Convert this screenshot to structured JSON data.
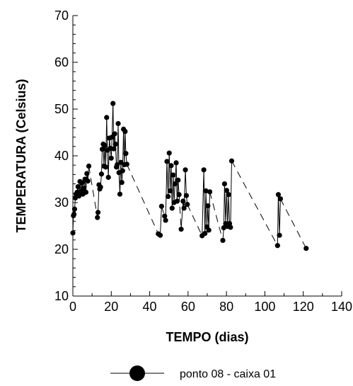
{
  "chart_data": {
    "type": "scatter",
    "xlabel": "TEMPO (dias)",
    "ylabel": "TEMPERATURA (Celsius)",
    "xlim": [
      0,
      140
    ],
    "ylim": [
      10,
      70
    ],
    "xticks": [
      0,
      20,
      40,
      60,
      80,
      100,
      120,
      140
    ],
    "yticks": [
      10,
      20,
      30,
      40,
      50,
      60,
      70
    ],
    "xtick_labels": [
      "0",
      "20",
      "40",
      "60",
      "80",
      "100",
      "120",
      "140"
    ],
    "ytick_labels": [
      "10",
      "20",
      "30",
      "40",
      "50",
      "60",
      "70"
    ],
    "grid": false,
    "legend_position": "bottom-center",
    "series": [
      {
        "name": "ponto 08 - caixa 01",
        "color": "#000000",
        "line_style": "dashed",
        "marker": "filled-circle",
        "points": [
          [
            0.0,
            23.5
          ],
          [
            0.3,
            27.2
          ],
          [
            0.6,
            27.5
          ],
          [
            0.9,
            28.6
          ],
          [
            1.3,
            31.0
          ],
          [
            1.7,
            31.8
          ],
          [
            2.2,
            32.2
          ],
          [
            2.7,
            33.4
          ],
          [
            3.2,
            31.4
          ],
          [
            3.7,
            34.5
          ],
          [
            4.2,
            32.4
          ],
          [
            4.7,
            34.2
          ],
          [
            5.2,
            31.8
          ],
          [
            5.7,
            33.1
          ],
          [
            6.3,
            35.0
          ],
          [
            6.8,
            32.2
          ],
          [
            7.3,
            36.2
          ],
          [
            7.8,
            34.6
          ],
          [
            8.3,
            37.8
          ],
          [
            12.8,
            26.8
          ],
          [
            13.1,
            27.9
          ],
          [
            13.6,
            33.8
          ],
          [
            14.0,
            32.9
          ],
          [
            14.4,
            33.3
          ],
          [
            14.9,
            36.1
          ],
          [
            15.3,
            41.4
          ],
          [
            15.8,
            42.5
          ],
          [
            16.2,
            37.8
          ],
          [
            16.7,
            42.2
          ],
          [
            17.1,
            37.6
          ],
          [
            17.6,
            48.2
          ],
          [
            18.0,
            41.2
          ],
          [
            18.5,
            35.4
          ],
          [
            19.0,
            43.8
          ],
          [
            19.5,
            41.6
          ],
          [
            20.0,
            39.5
          ],
          [
            20.4,
            44.0
          ],
          [
            20.9,
            51.2
          ],
          [
            21.3,
            41.5
          ],
          [
            21.8,
            44.7
          ],
          [
            22.2,
            42.5
          ],
          [
            22.7,
            37.6
          ],
          [
            23.1,
            38.1
          ],
          [
            23.6,
            46.9
          ],
          [
            24.0,
            36.4
          ],
          [
            24.5,
            31.8
          ],
          [
            25.0,
            38.6
          ],
          [
            25.5,
            34.3
          ],
          [
            25.9,
            36.8
          ],
          [
            26.4,
            45.7
          ],
          [
            26.8,
            38.1
          ],
          [
            27.2,
            45.2
          ],
          [
            27.6,
            40.5
          ],
          [
            28.1,
            38.2
          ],
          [
            44.5,
            23.3
          ],
          [
            45.5,
            23.0
          ],
          [
            46.2,
            29.2
          ],
          [
            47.8,
            27.1
          ],
          [
            48.3,
            26.2
          ],
          [
            49.0,
            38.8
          ],
          [
            49.6,
            31.3
          ],
          [
            50.2,
            40.6
          ],
          [
            50.7,
            32.5
          ],
          [
            51.2,
            37.9
          ],
          [
            51.7,
            28.8
          ],
          [
            52.2,
            35.9
          ],
          [
            52.7,
            30.0
          ],
          [
            53.2,
            34.0
          ],
          [
            53.8,
            38.5
          ],
          [
            54.3,
            30.3
          ],
          [
            54.8,
            34.8
          ],
          [
            55.3,
            31.7
          ],
          [
            56.4,
            24.3
          ],
          [
            57.4,
            30.3
          ],
          [
            57.9,
            28.8
          ],
          [
            58.6,
            37.0
          ],
          [
            59.1,
            31.5
          ],
          [
            59.6,
            29.6
          ],
          [
            67.3,
            22.9
          ],
          [
            68.2,
            37.0
          ],
          [
            68.8,
            23.4
          ],
          [
            69.3,
            32.5
          ],
          [
            69.8,
            24.8
          ],
          [
            70.3,
            29.3
          ],
          [
            70.8,
            24.1
          ],
          [
            71.3,
            32.3
          ],
          [
            78.1,
            21.9
          ],
          [
            78.6,
            24.6
          ],
          [
            79.0,
            34.0
          ],
          [
            79.6,
            25.5
          ],
          [
            80.1,
            32.6
          ],
          [
            80.6,
            24.9
          ],
          [
            81.1,
            31.7
          ],
          [
            81.6,
            25.5
          ],
          [
            82.1,
            24.7
          ],
          [
            82.7,
            38.9
          ],
          [
            106.6,
            20.8
          ],
          [
            107.0,
            31.7
          ],
          [
            107.6,
            23.0
          ],
          [
            108.1,
            30.8
          ],
          [
            121.5,
            20.2
          ]
        ]
      }
    ],
    "connector_segments": [
      [
        [
          8.3,
          37.8
        ],
        [
          12.8,
          26.8
        ]
      ],
      [
        [
          28.1,
          38.2
        ],
        [
          44.5,
          23.3
        ]
      ],
      [
        [
          46.2,
          29.2
        ],
        [
          47.8,
          27.1
        ]
      ],
      [
        [
          55.3,
          31.7
        ],
        [
          56.4,
          24.3
        ]
      ],
      [
        [
          59.6,
          29.6
        ],
        [
          67.3,
          22.9
        ]
      ],
      [
        [
          71.3,
          32.3
        ],
        [
          78.1,
          21.9
        ]
      ],
      [
        [
          82.7,
          38.9
        ],
        [
          106.6,
          20.8
        ]
      ],
      [
        [
          108.1,
          30.8
        ],
        [
          121.5,
          20.2
        ]
      ]
    ]
  }
}
